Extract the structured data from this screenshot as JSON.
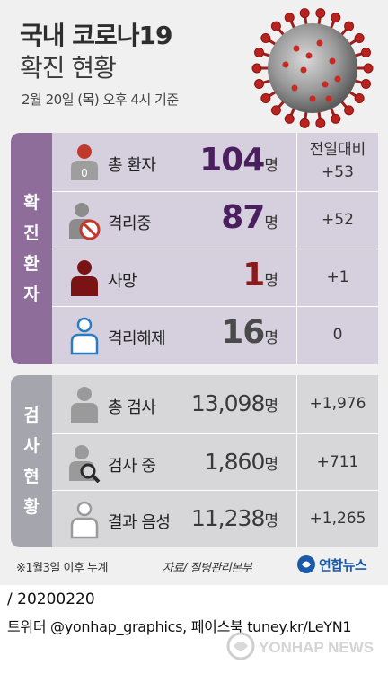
{
  "header": {
    "title_line1": "국내 코로나19",
    "title_line2": "확진 현황",
    "as_of": "2월 20일 (목) 오후 4시 기준"
  },
  "confirmed": {
    "side_label": [
      "확",
      "진",
      "환",
      "자"
    ],
    "delta_header": "전일대비",
    "rows": [
      {
        "label": "총 환자",
        "value": "104",
        "unit": "명",
        "delta": "+53"
      },
      {
        "label": "격리중",
        "value": "87",
        "unit": "명",
        "delta": "+52"
      },
      {
        "label": "사망",
        "value": "1",
        "unit": "명",
        "delta": "+1"
      },
      {
        "label": "격리해제",
        "value": "16",
        "unit": "명",
        "delta": "0"
      }
    ]
  },
  "testing": {
    "side_label": [
      "검",
      "사",
      "현",
      "황"
    ],
    "rows": [
      {
        "label": "총 검사",
        "value": "13,098",
        "unit": "명",
        "delta": "+1,976"
      },
      {
        "label": "검사 중",
        "value": "1,860",
        "unit": "명",
        "delta": "+711"
      },
      {
        "label": "결과 음성",
        "value": "11,238",
        "unit": "명",
        "delta": "+1,265"
      }
    ]
  },
  "footer": {
    "footnote": "※1월3일 이후 누계",
    "source": "자료/ 질병관리본부",
    "logo_text": "연합뉴스",
    "date_line": "/ 20200220",
    "social_line": "트위터 @yonhap_graphics, 페이스북 tuney.kr/LeYN1",
    "watermark": "YONHAP NEWS"
  },
  "colors": {
    "confirmed_accent": "#8e6d9b",
    "confirmed_bg": "#d6cfdd",
    "testing_accent": "#a5a5ad",
    "testing_bg": "#d7d7da",
    "number_purple": "#4a1f5e",
    "death_red": "#8b1a1a",
    "released_blue": "#2b7bc0",
    "logo_blue": "#1b5aa8"
  },
  "icons": {
    "total_patients": "person-red-head-icon",
    "isolated": "person-prohibited-icon",
    "deaths": "person-dark-red-icon",
    "released": "person-outline-blue-icon",
    "total_tests": "person-gray-icon",
    "testing": "person-magnifier-icon",
    "negative": "person-outline-gray-icon",
    "logo": "yonhap-logo-icon",
    "virus": "coronavirus-illustration"
  }
}
